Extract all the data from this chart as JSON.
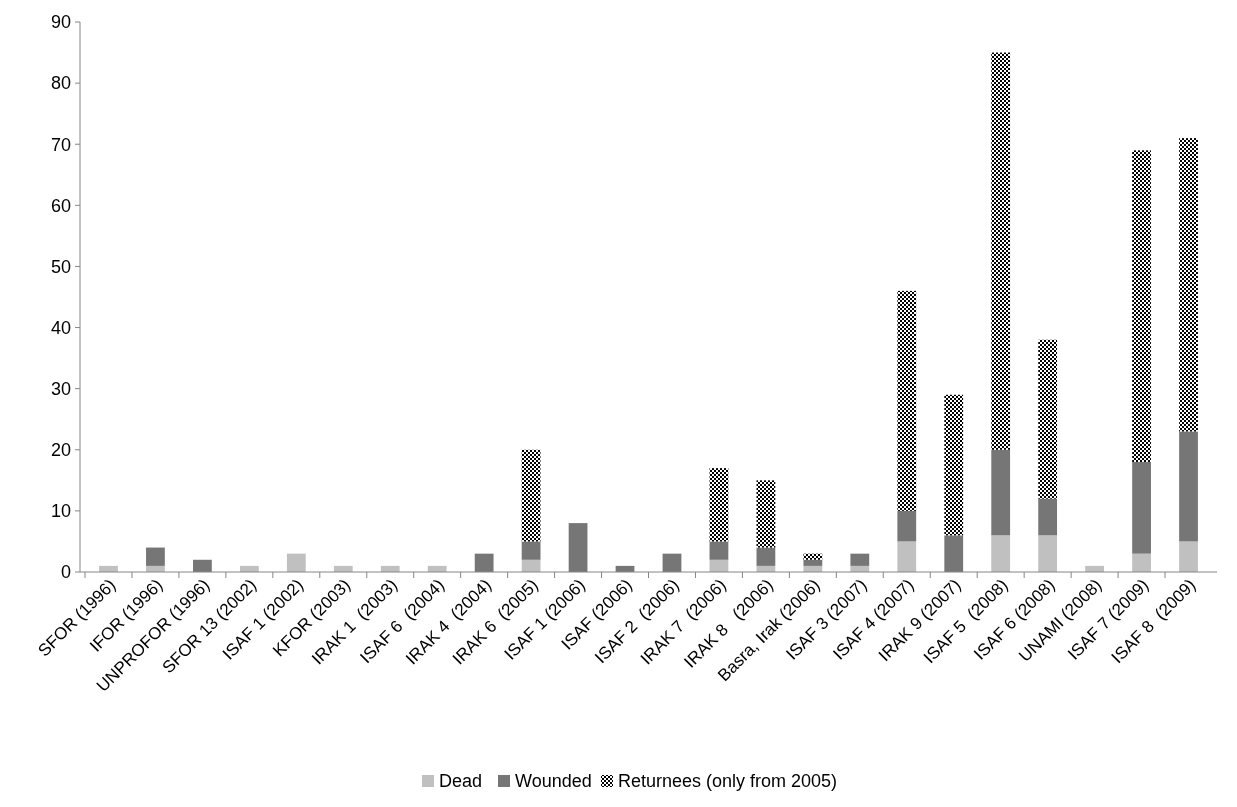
{
  "chart_data": {
    "type": "bar",
    "stacked": true,
    "categories": [
      "SFOR (1996)",
      "IFOR (1996)",
      "UNPROFOR (1996)",
      "SFOR 13 (2002)",
      "ISAF 1 (2002)",
      "KFOR (2003)",
      "IRAK 1  (2003)",
      "ISAF 6  (2004)",
      "IRAK 4  (2004)",
      "IRAK 6  (2005)",
      "ISAF 1 (2006)",
      "ISAF (2006)",
      "ISAF 2  (2006)",
      "IRAK 7  (2006)",
      "IRAK 8   (2006)",
      "Basra, Irak (2006)",
      "ISAF 3 (2007)",
      "ISAF 4 (2007)",
      "IRAK 9 (2007)",
      "ISAF 5  (2008)",
      "ISAF 6 (2008)",
      "UNAMI (2008)",
      "ISAF 7 (2009)",
      "ISAF 8  (2009)"
    ],
    "series": [
      {
        "name": "Dead",
        "color": "#c0c0c0",
        "values": [
          1,
          1,
          0,
          1,
          3,
          1,
          1,
          1,
          0,
          2,
          0,
          0,
          0,
          2,
          1,
          1,
          1,
          5,
          0,
          6,
          6,
          1,
          3,
          5
        ]
      },
      {
        "name": "Wounded",
        "color": "#767676",
        "values": [
          0,
          3,
          2,
          0,
          0,
          0,
          0,
          0,
          3,
          3,
          8,
          1,
          3,
          3,
          3,
          1,
          2,
          5,
          6,
          14,
          6,
          0,
          15,
          18
        ]
      },
      {
        "name": "Returnees (only from 2005)",
        "color": "#000000",
        "values": [
          0,
          0,
          0,
          0,
          0,
          0,
          0,
          0,
          0,
          15,
          0,
          0,
          0,
          12,
          11,
          1,
          0,
          36,
          23,
          65,
          26,
          0,
          51,
          48
        ]
      }
    ],
    "ylim": [
      0,
      90
    ],
    "yticks": [
      0,
      10,
      20,
      30,
      40,
      50,
      60,
      70,
      80,
      90
    ],
    "grid": false,
    "legend": "bottom"
  }
}
